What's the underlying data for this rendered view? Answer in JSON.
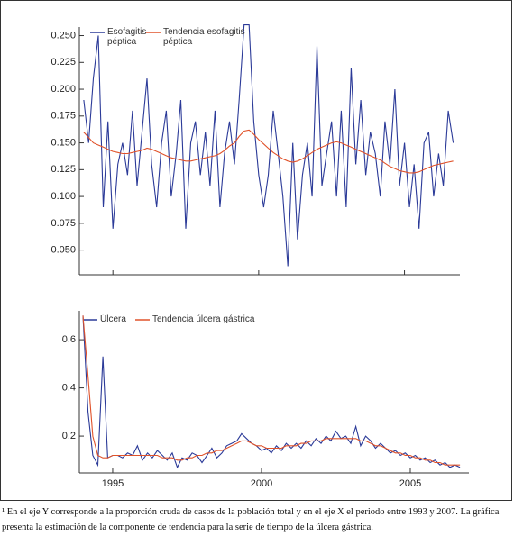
{
  "chart_data": [
    {
      "type": "line",
      "xlim": [
        1993.85,
        2006.9
      ],
      "xticks": [
        1995,
        2000,
        2005
      ],
      "ylim": [
        0.027,
        0.258
      ],
      "yticks": [
        {
          "value": 0.05,
          "label": "0.050"
        },
        {
          "value": 0.075,
          "label": "0.075"
        },
        {
          "value": 0.1,
          "label": "0.100"
        },
        {
          "value": 0.125,
          "label": "0.125"
        },
        {
          "value": 0.15,
          "label": "0.150"
        },
        {
          "value": 0.175,
          "label": "0.175"
        },
        {
          "value": 0.2,
          "label": "0.200"
        },
        {
          "value": 0.225,
          "label": "0.225"
        },
        {
          "value": 0.25,
          "label": "0.250"
        }
      ],
      "x": [
        1994,
        1994.17,
        1994.33,
        1994.5,
        1994.67,
        1994.83,
        1995,
        1995.17,
        1995.33,
        1995.5,
        1995.67,
        1995.83,
        1996,
        1996.17,
        1996.33,
        1996.5,
        1996.67,
        1996.83,
        1997,
        1997.17,
        1997.33,
        1997.5,
        1997.67,
        1997.83,
        1998,
        1998.17,
        1998.33,
        1998.5,
        1998.67,
        1998.83,
        1999,
        1999.17,
        1999.33,
        1999.5,
        1999.67,
        1999.83,
        2000,
        2000.17,
        2000.33,
        2000.5,
        2000.67,
        2000.83,
        2001,
        2001.17,
        2001.33,
        2001.5,
        2001.67,
        2001.83,
        2002,
        2002.17,
        2002.33,
        2002.5,
        2002.67,
        2002.83,
        2003,
        2003.17,
        2003.33,
        2003.5,
        2003.67,
        2003.83,
        2004,
        2004.17,
        2004.33,
        2004.5,
        2004.67,
        2004.83,
        2005,
        2005.17,
        2005.33,
        2005.5,
        2005.67,
        2005.83,
        2006,
        2006.17,
        2006.33,
        2006.5,
        2006.67
      ],
      "series": [
        {
          "name": "Esofagitis péptica",
          "color": "#2b3a98",
          "values": [
            0.19,
            0.15,
            0.21,
            0.25,
            0.09,
            0.17,
            0.07,
            0.13,
            0.15,
            0.12,
            0.18,
            0.11,
            0.16,
            0.21,
            0.13,
            0.09,
            0.15,
            0.18,
            0.1,
            0.14,
            0.19,
            0.07,
            0.15,
            0.17,
            0.12,
            0.16,
            0.11,
            0.18,
            0.09,
            0.14,
            0.17,
            0.13,
            0.19,
            0.26,
            0.26,
            0.17,
            0.12,
            0.09,
            0.12,
            0.18,
            0.14,
            0.1,
            0.035,
            0.15,
            0.06,
            0.12,
            0.15,
            0.1,
            0.24,
            0.11,
            0.14,
            0.17,
            0.1,
            0.18,
            0.09,
            0.22,
            0.13,
            0.19,
            0.12,
            0.16,
            0.14,
            0.1,
            0.17,
            0.13,
            0.2,
            0.11,
            0.15,
            0.09,
            0.13,
            0.07,
            0.15,
            0.16,
            0.1,
            0.14,
            0.11,
            0.18,
            0.15
          ]
        },
        {
          "name": "Tendencia esofagitis péptica",
          "color": "#e0522a",
          "values": [
            0.16,
            0.155,
            0.15,
            0.148,
            0.146,
            0.144,
            0.142,
            0.141,
            0.14,
            0.14,
            0.141,
            0.142,
            0.143,
            0.145,
            0.144,
            0.142,
            0.14,
            0.138,
            0.136,
            0.135,
            0.134,
            0.133,
            0.133,
            0.134,
            0.135,
            0.136,
            0.137,
            0.138,
            0.14,
            0.143,
            0.147,
            0.15,
            0.156,
            0.161,
            0.162,
            0.158,
            0.153,
            0.149,
            0.145,
            0.141,
            0.138,
            0.135,
            0.133,
            0.132,
            0.133,
            0.135,
            0.138,
            0.141,
            0.144,
            0.146,
            0.148,
            0.15,
            0.151,
            0.15,
            0.148,
            0.146,
            0.144,
            0.142,
            0.14,
            0.138,
            0.136,
            0.134,
            0.131,
            0.128,
            0.126,
            0.124,
            0.123,
            0.122,
            0.122,
            0.123,
            0.125,
            0.127,
            0.129,
            0.13,
            0.131,
            0.132,
            0.133
          ]
        }
      ]
    },
    {
      "type": "line",
      "xlim": [
        1993.88,
        2006.97
      ],
      "xticks": [
        1995,
        2000,
        2005
      ],
      "ylim": [
        0.047,
        0.72
      ],
      "yticks": [
        0.2,
        0.4,
        0.6
      ],
      "x": [
        1994,
        1994.17,
        1994.33,
        1994.5,
        1994.67,
        1994.83,
        1995,
        1995.17,
        1995.33,
        1995.5,
        1995.67,
        1995.83,
        1996,
        1996.17,
        1996.33,
        1996.5,
        1996.67,
        1996.83,
        1997,
        1997.17,
        1997.33,
        1997.5,
        1997.67,
        1997.83,
        1998,
        1998.17,
        1998.33,
        1998.5,
        1998.67,
        1998.83,
        1999,
        1999.17,
        1999.33,
        1999.5,
        1999.67,
        1999.83,
        2000,
        2000.17,
        2000.33,
        2000.5,
        2000.67,
        2000.83,
        2001,
        2001.17,
        2001.33,
        2001.5,
        2001.67,
        2001.83,
        2002,
        2002.17,
        2002.33,
        2002.5,
        2002.67,
        2002.83,
        2003,
        2003.17,
        2003.33,
        2003.5,
        2003.67,
        2003.83,
        2004,
        2004.17,
        2004.33,
        2004.5,
        2004.67,
        2004.83,
        2005,
        2005.17,
        2005.33,
        2005.5,
        2005.67,
        2005.83,
        2006,
        2006.17,
        2006.33,
        2006.5,
        2006.67
      ],
      "series": [
        {
          "name": "Úlcera",
          "color": "#2b3a98",
          "values": [
            0.7,
            0.3,
            0.12,
            0.08,
            0.53,
            0.11,
            0.12,
            0.12,
            0.11,
            0.13,
            0.12,
            0.16,
            0.1,
            0.13,
            0.11,
            0.14,
            0.12,
            0.1,
            0.13,
            0.07,
            0.11,
            0.1,
            0.13,
            0.12,
            0.09,
            0.12,
            0.15,
            0.11,
            0.13,
            0.16,
            0.17,
            0.18,
            0.21,
            0.19,
            0.17,
            0.16,
            0.14,
            0.15,
            0.13,
            0.16,
            0.14,
            0.17,
            0.15,
            0.17,
            0.15,
            0.18,
            0.16,
            0.19,
            0.17,
            0.2,
            0.18,
            0.22,
            0.19,
            0.2,
            0.17,
            0.24,
            0.16,
            0.2,
            0.18,
            0.15,
            0.17,
            0.15,
            0.13,
            0.14,
            0.12,
            0.13,
            0.11,
            0.12,
            0.1,
            0.11,
            0.09,
            0.1,
            0.08,
            0.09,
            0.07,
            0.08,
            0.07
          ]
        },
        {
          "name": "Tendencia úlcera gástrica",
          "color": "#e0522a",
          "values": [
            0.7,
            0.45,
            0.2,
            0.12,
            0.11,
            0.11,
            0.12,
            0.12,
            0.12,
            0.12,
            0.12,
            0.12,
            0.12,
            0.12,
            0.12,
            0.12,
            0.11,
            0.11,
            0.11,
            0.1,
            0.1,
            0.11,
            0.11,
            0.12,
            0.12,
            0.13,
            0.13,
            0.14,
            0.14,
            0.15,
            0.16,
            0.17,
            0.18,
            0.18,
            0.17,
            0.16,
            0.16,
            0.15,
            0.15,
            0.15,
            0.15,
            0.16,
            0.16,
            0.16,
            0.17,
            0.17,
            0.18,
            0.18,
            0.18,
            0.19,
            0.19,
            0.19,
            0.19,
            0.19,
            0.19,
            0.19,
            0.18,
            0.18,
            0.17,
            0.16,
            0.16,
            0.15,
            0.14,
            0.13,
            0.13,
            0.12,
            0.12,
            0.11,
            0.11,
            0.1,
            0.1,
            0.09,
            0.09,
            0.08,
            0.08,
            0.08,
            0.08
          ]
        }
      ]
    }
  ],
  "caption": "¹ En el eje Y corresponde a la proporción cruda de casos de la población total y en el eje X el periodo entre 1993 y 2007. La gráfica presenta la estimación de la componente de tendencia para la serie de tiempo de la úlcera gástrica."
}
